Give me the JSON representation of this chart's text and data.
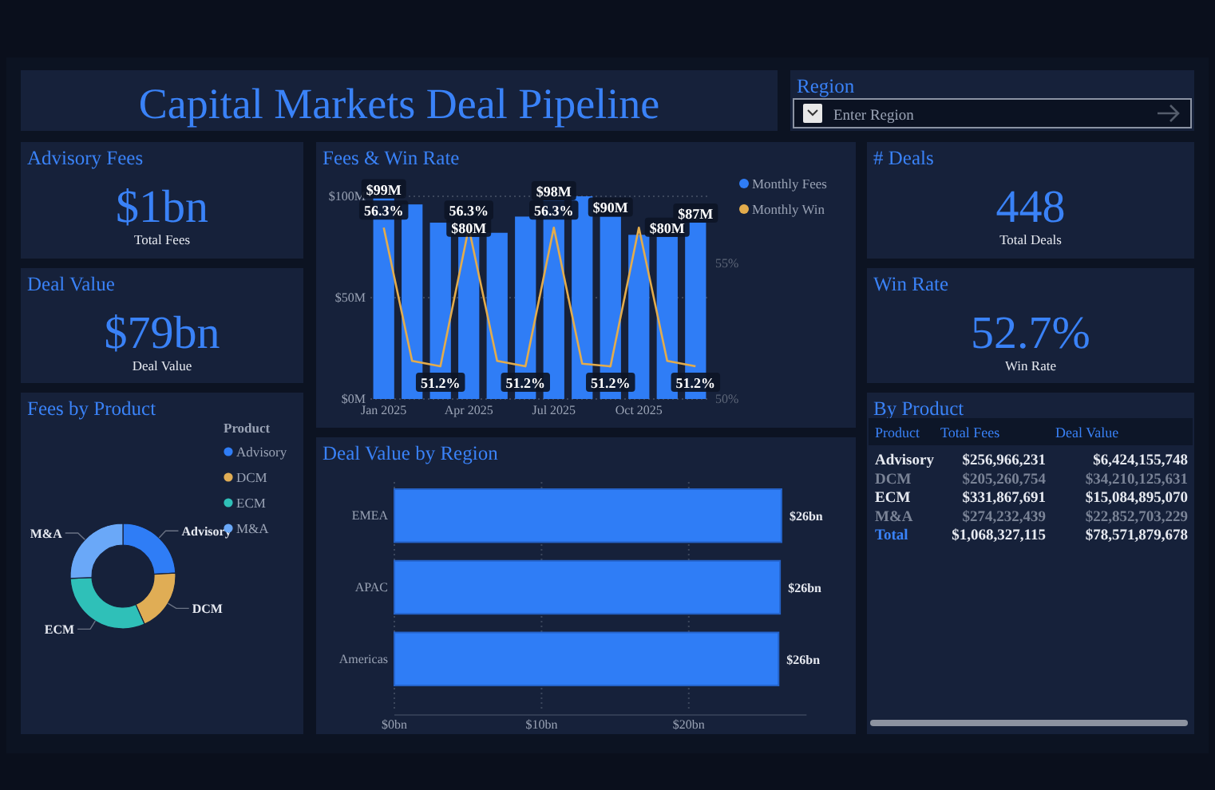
{
  "chart_data": [
    {
      "type": "other",
      "title": "Capital Markets Deal Pipeline"
    },
    {
      "type": "other",
      "title": "Region",
      "annotations": [
        "Enter Region"
      ]
    },
    {
      "type": "other",
      "title": "Advisory Fees",
      "annotations": [
        "$1bn",
        "Total Fees"
      ]
    },
    {
      "type": "bar",
      "title": "Fees & Win Rate",
      "categories": [
        "Jan 2025",
        null,
        null,
        "Apr 2025",
        null,
        null,
        "Jul 2025",
        null,
        null,
        "Oct 2025",
        null,
        null
      ],
      "series": [
        {
          "name": "Monthly Fees",
          "type": "bar",
          "color": "#2f7df6",
          "values": [
            99,
            96,
            87,
            80,
            82,
            90,
            98,
            100,
            90,
            81,
            80,
            87
          ],
          "value_labels": [
            "$99M",
            null,
            null,
            "$80M",
            null,
            null,
            "$98M",
            null,
            "$90M",
            null,
            "$80M",
            "$87M"
          ]
        },
        {
          "name": "Monthly Win",
          "type": "line",
          "axis": "y2",
          "color": "#e3ac4c",
          "values": [
            56.3,
            51.4,
            51.2,
            56.3,
            51.4,
            51.2,
            56.3,
            51.3,
            51.2,
            56.3,
            51.4,
            51.2
          ],
          "value_labels": [
            "56.3%",
            null,
            "51.2%",
            "56.3%",
            null,
            "51.2%",
            "56.3%",
            null,
            "51.2%",
            null,
            null,
            "51.2%"
          ]
        }
      ],
      "ylim": [
        0,
        100
      ],
      "yticks": [
        {
          "value": 0,
          "label": "$0M"
        },
        {
          "value": 50,
          "label": "$50M"
        },
        {
          "value": 100,
          "label": "$100M"
        }
      ],
      "y2lim": [
        50,
        57.45
      ],
      "y2ticks": [
        {
          "value": 50,
          "label": "50%"
        },
        {
          "value": 55,
          "label": "55%"
        }
      ],
      "grid": "y",
      "legend": "top right",
      "marker": "none"
    },
    {
      "type": "other",
      "title": "# Deals",
      "annotations": [
        "448",
        "Total Deals"
      ]
    },
    {
      "type": "other",
      "title": "Deal Value",
      "annotations": [
        "$79bn",
        "Deal Value"
      ]
    },
    {
      "type": "other",
      "title": "Win Rate",
      "annotations": [
        "52.7%",
        "Win Rate"
      ]
    },
    {
      "type": "donut",
      "title": "Fees by Product",
      "legend_title": "Product",
      "categories": [
        "Advisory",
        "DCM",
        "ECM",
        "M&A"
      ],
      "values": [
        24.05,
        19.21,
        31.07,
        25.67
      ],
      "colors": [
        "#2f7df6",
        "#e0ad55",
        "#2fc0b8",
        "#6aa8f8"
      ],
      "legend": "top right"
    },
    {
      "type": "bar",
      "orientation": "horizontal",
      "title": "Deal Value by Region",
      "categories": [
        "EMEA",
        "APAC",
        "Americas"
      ],
      "values": [
        26.3,
        26.2,
        26.1
      ],
      "value_labels": [
        "$26bn",
        "$26bn",
        "$26bn"
      ],
      "color": "#2f7df6",
      "xlim": [
        0,
        28
      ],
      "xticks": [
        {
          "value": 0,
          "label": "$0bn"
        },
        {
          "value": 10,
          "label": "$10bn"
        },
        {
          "value": 20,
          "label": "$20bn"
        }
      ],
      "grid": "x"
    },
    {
      "type": "other",
      "title": "By Product",
      "annotations": [
        "Product",
        "Total Fees",
        "Deal Value",
        "Advisory",
        "$256,966,231",
        "$6,424,155,748",
        "DCM",
        "$205,260,754",
        "$34,210,125,631",
        "ECM",
        "$331,867,691",
        "$15,084,895,070",
        "M&A",
        "$274,232,439",
        "$22,852,703,229",
        "Total",
        "$1,068,327,115",
        "$78,571,879,678"
      ]
    }
  ]
}
